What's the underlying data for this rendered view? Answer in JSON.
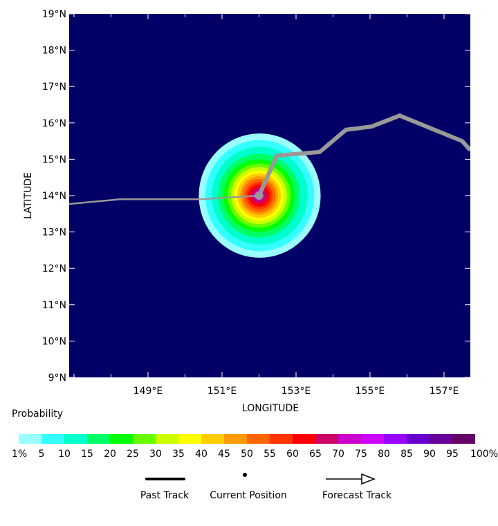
{
  "chart_data": {
    "type": "heatmap",
    "xlabel": "LONGITUDE",
    "ylabel": "LATITUDE",
    "xlim": [
      146.87,
      157.71
    ],
    "ylim": [
      9,
      19
    ],
    "x_ticks": [
      149,
      151,
      153,
      155,
      157
    ],
    "x_tick_labels": [
      "149°E",
      "151°E",
      "153°E",
      "155°E",
      "157°E"
    ],
    "y_ticks": [
      9,
      10,
      11,
      12,
      13,
      14,
      15,
      16,
      17,
      18,
      19
    ],
    "y_tick_labels": [
      "9°N",
      "10°N",
      "11°N",
      "12°N",
      "13°N",
      "14°N",
      "15°N",
      "16°N",
      "17°N",
      "18°N",
      "19°N"
    ],
    "background_color": "#000066",
    "probability_field": {
      "center": [
        152.0,
        14.0
      ],
      "contour_levels": [
        1,
        5,
        10,
        15,
        20,
        25,
        30,
        35,
        40,
        45,
        50,
        55,
        60,
        65,
        70
      ],
      "contour_radii_deg": [
        1.68,
        1.5,
        1.32,
        1.13,
        0.98,
        0.87,
        0.77,
        0.68,
        0.6,
        0.52,
        0.45,
        0.37,
        0.3,
        0.22,
        0.14
      ]
    },
    "past_track": [
      [
        146.87,
        13.77
      ],
      [
        148.25,
        13.9
      ],
      [
        150.42,
        13.9
      ],
      [
        152.0,
        14.0
      ]
    ],
    "forecast_track": [
      [
        152.0,
        14.0
      ],
      [
        152.48,
        15.1
      ],
      [
        153.64,
        15.2
      ],
      [
        154.35,
        15.81
      ],
      [
        155.04,
        15.9
      ],
      [
        155.8,
        16.2
      ],
      [
        157.49,
        15.5
      ],
      [
        157.71,
        15.25
      ]
    ],
    "current_position": [
      152.0,
      14.0
    ],
    "track_color": "#999999",
    "colorbar": {
      "title": "Probability",
      "labels": [
        "1%",
        "5",
        "10",
        "15",
        "20",
        "25",
        "30",
        "35",
        "40",
        "45",
        "50",
        "55",
        "60",
        "65",
        "70",
        "75",
        "80",
        "85",
        "90",
        "95",
        "100%"
      ],
      "colors": [
        "#99ffff",
        "#33ffff",
        "#00ffcc",
        "#00ff66",
        "#00ff00",
        "#66ff00",
        "#ccff00",
        "#ffff00",
        "#ffcc00",
        "#ff9900",
        "#ff6600",
        "#ff3300",
        "#ff0000",
        "#cc0066",
        "#cc00cc",
        "#cc00ff",
        "#9900ff",
        "#6600cc",
        "#660099",
        "#660066"
      ]
    },
    "legend": {
      "past": "Past Track",
      "current": "Current Position",
      "forecast": "Forecast Track"
    }
  }
}
